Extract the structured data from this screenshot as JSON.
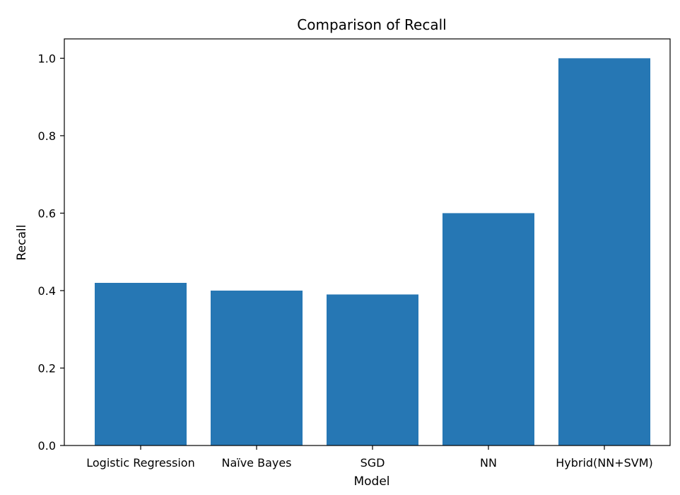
{
  "chart_data": {
    "type": "bar",
    "title": "Comparison of Recall",
    "xlabel": "Model",
    "ylabel": "Recall",
    "categories": [
      "Logistic Regression",
      "Naïve Bayes",
      "SGD",
      "NN",
      "Hybrid(NN+SVM)"
    ],
    "values": [
      0.42,
      0.4,
      0.39,
      0.6,
      1.0
    ],
    "ylim": [
      0,
      1.05
    ],
    "yticks": [
      "0.0",
      "0.2",
      "0.4",
      "0.6",
      "0.8",
      "1.0"
    ],
    "grid": false,
    "bar_color": "#2677b4"
  }
}
